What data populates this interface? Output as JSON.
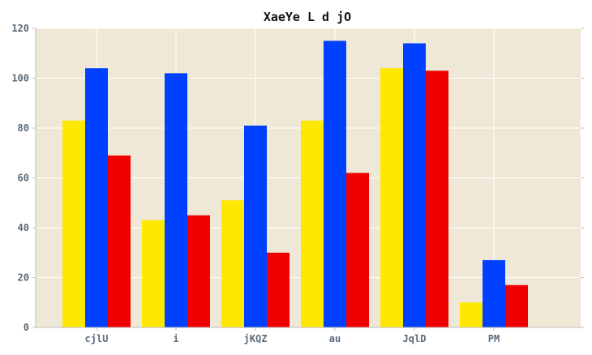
{
  "chart_data": {
    "type": "bar",
    "title": "XaeYe L d jO",
    "xlabel": "",
    "ylabel": "",
    "categories": [
      "cjlU",
      "i",
      "jKQZ",
      "au",
      "JqlD",
      "PM"
    ],
    "series": [
      {
        "values": [
          83,
          43,
          51,
          83,
          104,
          10
        ],
        "color": "#ffe800"
      },
      {
        "values": [
          104,
          102,
          81,
          115,
          114,
          27
        ],
        "color": "#0041ff"
      },
      {
        "values": [
          69,
          45,
          30,
          62,
          103,
          17
        ],
        "color": "#f00000"
      }
    ],
    "ylim": [
      0,
      120
    ],
    "yticks": [
      0,
      20,
      40,
      60,
      80,
      100,
      120
    ],
    "grid": true,
    "legend": "none",
    "plot_background": "#efe8d6",
    "grid_color": "#ffffff"
  }
}
